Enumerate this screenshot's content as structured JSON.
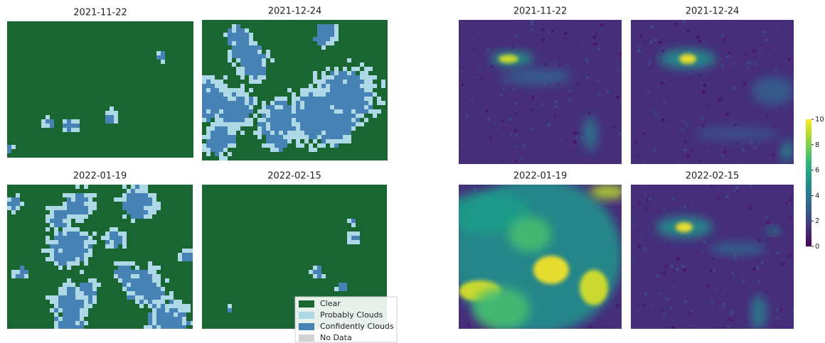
{
  "left_panels": {
    "titles": [
      "2021-11-22",
      "2021-12-24",
      "2022-01-19",
      "2022-02-15"
    ]
  },
  "legend": {
    "items": [
      {
        "label": "Clear",
        "color": "#1a6632"
      },
      {
        "label": "Probably Clouds",
        "color": "#add8e6"
      },
      {
        "label": "Confidently Clouds",
        "color": "#4682b4"
      },
      {
        "label": "No Data",
        "color": "#d3d3d3"
      }
    ]
  },
  "right_panels": {
    "titles": [
      "2021-11-22",
      "2021-12-24",
      "2022-01-19",
      "2022-02-15"
    ]
  },
  "colorbar": {
    "lim": [
      0,
      10
    ],
    "ticks": [
      0,
      2,
      4,
      6,
      8,
      10
    ],
    "colormap": "viridis"
  }
}
